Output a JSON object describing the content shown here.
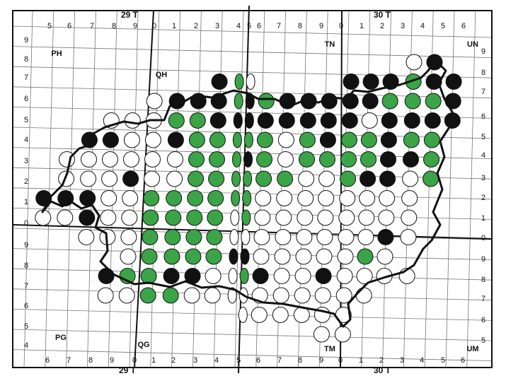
{
  "zones": {
    "top": [
      "29 T",
      "30 T"
    ],
    "bottom": [
      "29 T",
      "30 T"
    ]
  },
  "top_labels": [
    "5",
    "6",
    "7",
    "8",
    "9",
    "0",
    "1",
    "2",
    "3",
    "4",
    "5",
    "6",
    "7",
    "8",
    "9",
    "0",
    "1",
    "2",
    "3",
    "4",
    "5",
    "6"
  ],
  "bottom_labels": [
    "6",
    "7",
    "8",
    "9",
    "0",
    "1",
    "2",
    "3",
    "4",
    "5",
    "6",
    "7",
    "8",
    "9",
    "0",
    "1",
    "2",
    "3",
    "4",
    "5",
    "6"
  ],
  "left_labels": [
    "9",
    "8",
    "7",
    "6",
    "5",
    "4",
    "3",
    "2",
    "1",
    "0",
    "9",
    "8",
    "7",
    "6",
    "5",
    "4"
  ],
  "right_labels": [
    "9",
    "8",
    "7",
    "6",
    "5",
    "4",
    "3",
    "2",
    "1",
    "0",
    "9",
    "8",
    "7",
    "6",
    "5"
  ],
  "squares": [
    "PH",
    "QH",
    "TN",
    "UN",
    "PG",
    "QG",
    "TM",
    "UM"
  ]
}
